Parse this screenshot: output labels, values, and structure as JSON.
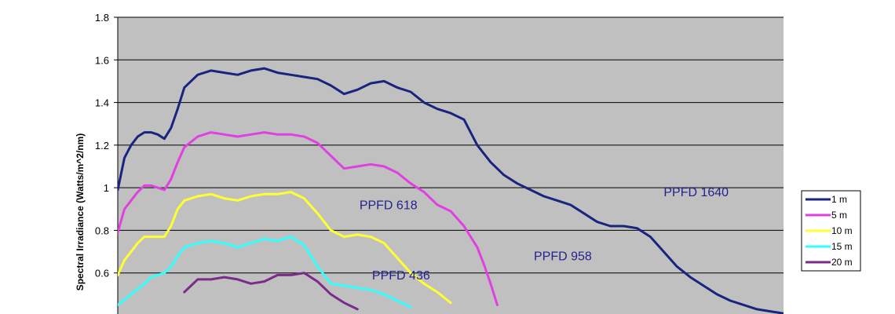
{
  "chart_data": {
    "type": "line",
    "title": "",
    "xlabel": "",
    "ylabel": "Spectral Irradiance (Watts/m^2/nm)",
    "ylim": [
      0.4,
      1.8
    ],
    "yticks": [
      "0.6",
      "0.8",
      "1",
      "1.2",
      "1.4",
      "1.6",
      "1.8"
    ],
    "xlim": [
      0,
      100
    ],
    "grid": true,
    "legend_position": "right",
    "background_color": "#c0c0c0",
    "series": [
      {
        "name": "1 m",
        "color": "#1a237e",
        "x": [
          0,
          1,
          2,
          3,
          4,
          5,
          6,
          7,
          8,
          9,
          10,
          12,
          14,
          16,
          18,
          20,
          22,
          24,
          26,
          28,
          30,
          32,
          34,
          36,
          38,
          40,
          42,
          44,
          46,
          48,
          50,
          52,
          54,
          56,
          58,
          60,
          62,
          64,
          66,
          68,
          70,
          72,
          74,
          76,
          78,
          80,
          82,
          84,
          86,
          88,
          90,
          92,
          94,
          96,
          98,
          100
        ],
        "values": [
          0.99,
          1.14,
          1.2,
          1.24,
          1.26,
          1.26,
          1.25,
          1.23,
          1.28,
          1.37,
          1.47,
          1.53,
          1.55,
          1.54,
          1.53,
          1.55,
          1.56,
          1.54,
          1.53,
          1.52,
          1.51,
          1.48,
          1.44,
          1.46,
          1.49,
          1.5,
          1.47,
          1.45,
          1.4,
          1.37,
          1.35,
          1.32,
          1.2,
          1.12,
          1.06,
          1.02,
          0.99,
          0.96,
          0.94,
          0.92,
          0.88,
          0.84,
          0.82,
          0.82,
          0.81,
          0.77,
          0.7,
          0.63,
          0.58,
          0.54,
          0.5,
          0.47,
          0.45,
          0.43,
          0.42,
          0.41
        ]
      },
      {
        "name": "5 m",
        "color": "#e040e0",
        "x": [
          0,
          1,
          2,
          3,
          4,
          5,
          6,
          7,
          8,
          9,
          10,
          12,
          14,
          16,
          18,
          20,
          22,
          24,
          26,
          28,
          30,
          32,
          34,
          36,
          38,
          40,
          42,
          44,
          46,
          48,
          50,
          52,
          54,
          55,
          56,
          57
        ],
        "values": [
          0.79,
          0.9,
          0.94,
          0.98,
          1.01,
          1.01,
          1.0,
          0.99,
          1.04,
          1.12,
          1.19,
          1.24,
          1.26,
          1.25,
          1.24,
          1.25,
          1.26,
          1.25,
          1.25,
          1.24,
          1.21,
          1.15,
          1.09,
          1.1,
          1.11,
          1.1,
          1.07,
          1.02,
          0.98,
          0.92,
          0.89,
          0.82,
          0.72,
          0.64,
          0.55,
          0.45
        ]
      },
      {
        "name": "10 m",
        "color": "#ffff33",
        "x": [
          0,
          1,
          2,
          3,
          4,
          5,
          6,
          7,
          8,
          9,
          10,
          12,
          14,
          16,
          18,
          20,
          22,
          24,
          26,
          28,
          30,
          32,
          34,
          36,
          38,
          40,
          42,
          44,
          46,
          48,
          50
        ],
        "values": [
          0.59,
          0.66,
          0.7,
          0.74,
          0.77,
          0.77,
          0.77,
          0.77,
          0.82,
          0.9,
          0.94,
          0.96,
          0.97,
          0.95,
          0.94,
          0.96,
          0.97,
          0.97,
          0.98,
          0.95,
          0.88,
          0.8,
          0.77,
          0.78,
          0.77,
          0.74,
          0.67,
          0.6,
          0.55,
          0.51,
          0.46
        ]
      },
      {
        "name": "15 m",
        "color": "#33ffff",
        "x": [
          0,
          2,
          4,
          5,
          6,
          7,
          8,
          9,
          10,
          12,
          14,
          16,
          18,
          20,
          22,
          24,
          26,
          28,
          30,
          32,
          34,
          36,
          38,
          40,
          42,
          44
        ],
        "values": [
          0.45,
          0.5,
          0.55,
          0.58,
          0.59,
          0.6,
          0.63,
          0.68,
          0.72,
          0.74,
          0.75,
          0.74,
          0.72,
          0.74,
          0.76,
          0.75,
          0.77,
          0.73,
          0.63,
          0.55,
          0.54,
          0.53,
          0.52,
          0.5,
          0.47,
          0.44
        ]
      },
      {
        "name": "20 m",
        "color": "#7b2c8b",
        "x": [
          10,
          11,
          12,
          14,
          16,
          18,
          20,
          22,
          24,
          26,
          28,
          30,
          32,
          34,
          36
        ],
        "values": [
          0.51,
          0.54,
          0.57,
          0.57,
          0.58,
          0.57,
          0.55,
          0.56,
          0.59,
          0.59,
          0.6,
          0.56,
          0.5,
          0.46,
          0.43
        ]
      }
    ],
    "annotations": [
      {
        "text": "PPFD  1640",
        "x": 82,
        "y": 0.96,
        "color": "#23238e"
      },
      {
        "text": "PPFD 958",
        "x": 62.5,
        "y": 0.66,
        "color": "#23238e"
      },
      {
        "text": "PPFD 618",
        "x": 36.3,
        "y": 0.9,
        "color": "#23238e"
      },
      {
        "text": "PPFD 436",
        "x": 38.2,
        "y": 0.57,
        "color": "#23238e"
      }
    ]
  }
}
